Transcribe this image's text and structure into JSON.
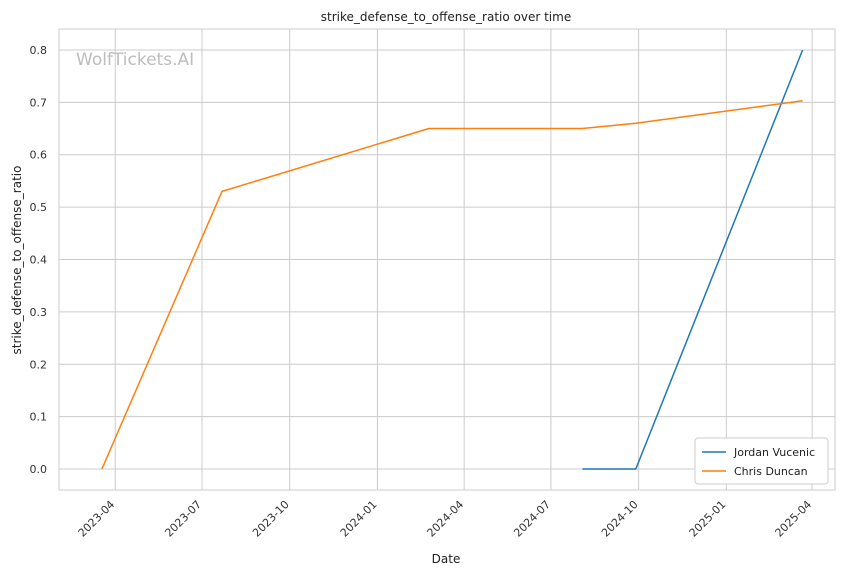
{
  "chart_data": {
    "type": "line",
    "title": "strike_defense_to_offense_ratio over time",
    "xlabel": "Date",
    "ylabel": "strike_defense_to_offense_ratio",
    "watermark": "WolfTickets.AI",
    "xlim": [
      "2023-02-01",
      "2025-04-25"
    ],
    "ylim": [
      -0.04,
      0.84
    ],
    "x_ticks": [
      "2023-04-01",
      "2023-07-01",
      "2023-10-01",
      "2024-01-01",
      "2024-04-01",
      "2024-07-01",
      "2024-10-01",
      "2025-01-01",
      "2025-04-01"
    ],
    "x_tick_labels": [
      "2023-04",
      "2023-07",
      "2023-10",
      "2024-01",
      "2024-04",
      "2024-07",
      "2024-10",
      "2025-01",
      "2025-04"
    ],
    "y_ticks": [
      0.0,
      0.1,
      0.2,
      0.3,
      0.4,
      0.5,
      0.6,
      0.7,
      0.8
    ],
    "y_tick_labels": [
      "0.0",
      "0.1",
      "0.2",
      "0.3",
      "0.4",
      "0.5",
      "0.6",
      "0.7",
      "0.8"
    ],
    "grid": true,
    "legend_position": "bottom-right",
    "series": [
      {
        "name": "Jordan Vucenic",
        "color": "#1f77b4",
        "points": [
          {
            "x": "2024-08-03",
            "y": 0.0
          },
          {
            "x": "2024-09-28",
            "y": 0.0
          },
          {
            "x": "2025-03-22",
            "y": 0.8
          }
        ]
      },
      {
        "name": "Chris Duncan",
        "color": "#ff7f0e",
        "points": [
          {
            "x": "2023-03-18",
            "y": 0.0
          },
          {
            "x": "2023-07-22",
            "y": 0.53
          },
          {
            "x": "2024-02-24",
            "y": 0.65
          },
          {
            "x": "2024-08-03",
            "y": 0.65
          },
          {
            "x": "2024-09-28",
            "y": 0.66
          },
          {
            "x": "2025-03-22",
            "y": 0.703
          }
        ]
      }
    ]
  }
}
